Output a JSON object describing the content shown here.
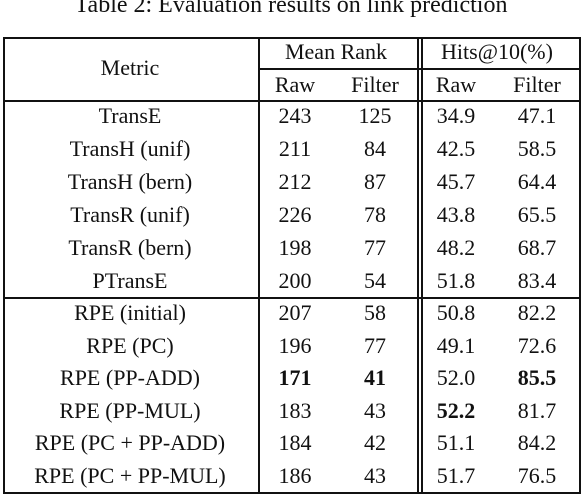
{
  "title": "Table 2: Evaluation results on link prediction",
  "table": {
    "header": {
      "metric": "Metric",
      "groups": [
        "Mean Rank",
        "Hits@10(%)"
      ],
      "subcolumns": [
        "Raw",
        "Filter",
        "Raw",
        "Filter"
      ]
    },
    "sections": [
      [
        {
          "cells": [
            "TransE",
            "243",
            "125",
            "34.9",
            "47.1"
          ]
        },
        {
          "cells": [
            "TransH (unif)",
            "211",
            "84",
            "42.5",
            "58.5"
          ]
        },
        {
          "cells": [
            "TransH (bern)",
            "212",
            "87",
            "45.7",
            "64.4"
          ]
        },
        {
          "cells": [
            "TransR (unif)",
            "226",
            "78",
            "43.8",
            "65.5"
          ]
        },
        {
          "cells": [
            "TransR (bern)",
            "198",
            "77",
            "48.2",
            "68.7"
          ]
        },
        {
          "cells": [
            "PTransE",
            "200",
            "54",
            "51.8",
            "83.4"
          ]
        }
      ],
      [
        {
          "cells": [
            "RPE (initial)",
            "207",
            "58",
            "50.8",
            "82.2"
          ]
        },
        {
          "cells": [
            "RPE (PC)",
            "196",
            "77",
            "49.1",
            "72.6"
          ]
        },
        {
          "cells": [
            "RPE (PP-ADD)",
            "171",
            "41",
            "52.0",
            "85.5"
          ],
          "bold": [
            1,
            2,
            4
          ]
        },
        {
          "cells": [
            "RPE (PP-MUL)",
            "183",
            "43",
            "52.2",
            "81.7"
          ],
          "bold": [
            3
          ]
        },
        {
          "cells": [
            "RPE (PC + PP-ADD)",
            "184",
            "42",
            "51.1",
            "84.2"
          ]
        },
        {
          "cells": [
            "RPE (PC + PP-MUL)",
            "186",
            "43",
            "51.7",
            "76.5"
          ]
        }
      ]
    ]
  }
}
